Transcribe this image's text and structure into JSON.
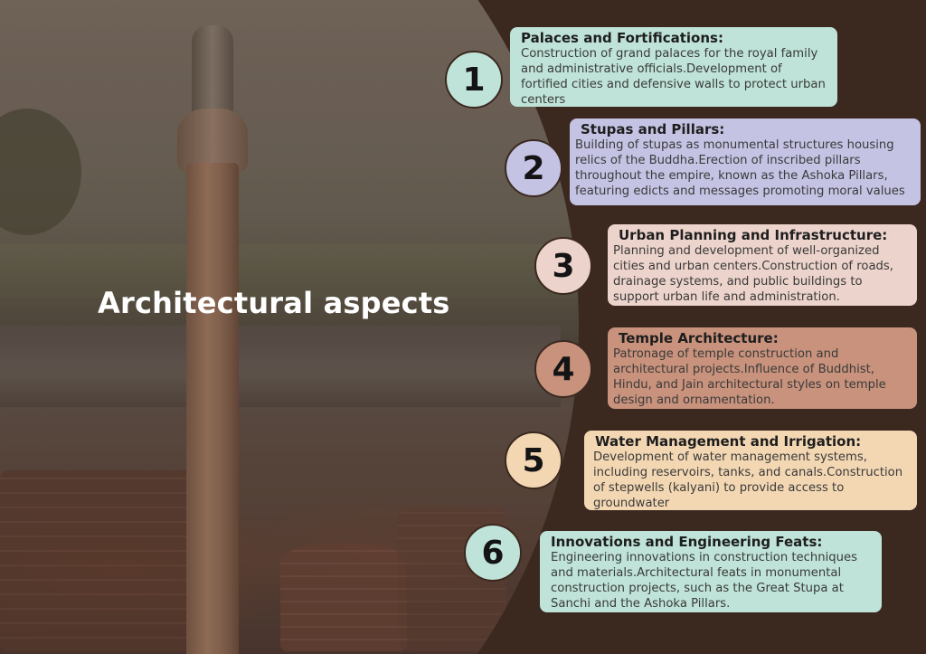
{
  "title": "Architectural aspects",
  "colors": {
    "background": "#3b2920",
    "mint": "#bfe3d8",
    "lavender": "#c5c3e4",
    "blush": "#ecd3cb",
    "clay": "#c8927c",
    "cream": "#f3d7b3"
  },
  "items": [
    {
      "number": "1",
      "heading": "Palaces and Fortifications:",
      "text": "Construction of grand palaces for the royal family and administrative officials.Development of fortified cities and defensive walls to protect urban centers"
    },
    {
      "number": "2",
      "heading": "Stupas and Pillars:",
      "text": "Building of stupas as monumental structures housing relics of the Buddha.Erection of inscribed pillars throughout the empire, known as the Ashoka Pillars, featuring edicts and messages promoting moral values"
    },
    {
      "number": "3",
      "heading": "Urban Planning and Infrastructure:",
      "text": "Planning and development of well-organized cities and urban centers.Construction of roads, drainage systems, and public buildings to support urban life and administration."
    },
    {
      "number": "4",
      "heading": "Temple Architecture:",
      "text": "Patronage of temple construction and architectural projects.Influence of Buddhist, Hindu, and Jain architectural styles on temple design and ornamentation."
    },
    {
      "number": "5",
      "heading": "Water Management and Irrigation:",
      "text": "Development of water management systems, including reservoirs, tanks, and canals.Construction of stepwells (kalyani) to provide access to groundwater"
    },
    {
      "number": "6",
      "heading": "Innovations and Engineering Feats:",
      "text": "Engineering innovations in construction techniques and materials.Architectural feats in monumental construction projects, such as the Great Stupa at Sanchi and the Ashoka Pillars."
    }
  ]
}
